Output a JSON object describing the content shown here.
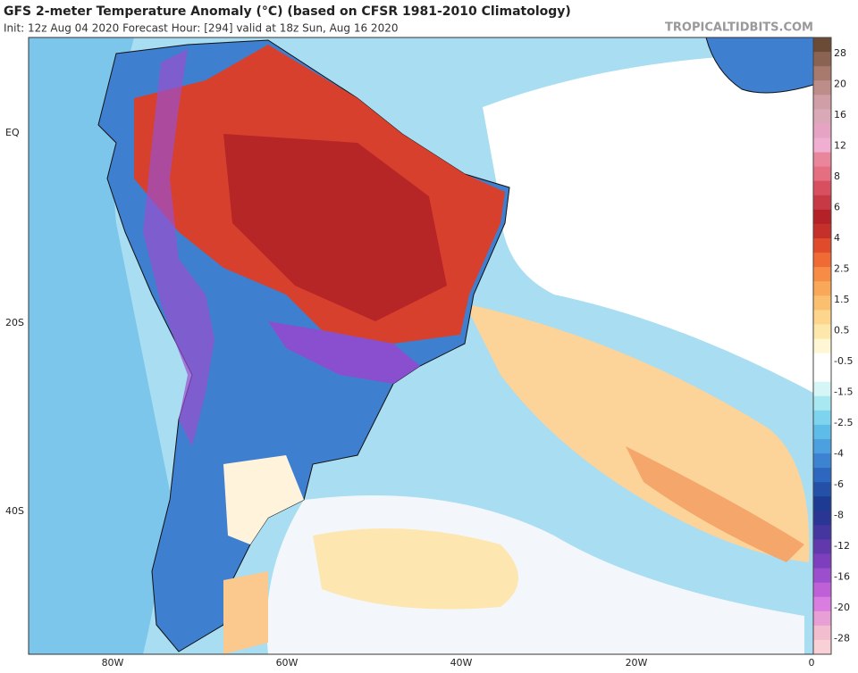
{
  "header": {
    "title": "GFS 2-meter Temperature Anomaly (°C) (based on CFSR 1981-2010 Climatology)",
    "subtitle": "Init: 12z Aug 04 2020   Forecast Hour: [294]   valid at 18z Sun, Aug 16 2020",
    "watermark": "TROPICALTIDBITS.COM"
  },
  "map": {
    "lat_labels": [
      "EQ",
      "20S",
      "40S"
    ],
    "lon_labels": [
      "80W",
      "60W",
      "40W",
      "20W",
      "0"
    ]
  },
  "colorbar": {
    "labels": [
      28,
      20,
      16,
      12,
      8,
      6,
      4,
      2.5,
      1.5,
      0.5,
      -0.5,
      -1.5,
      -2.5,
      -4,
      -6,
      -8,
      -12,
      -16,
      -20,
      -28
    ],
    "colors": [
      "#6b4a36",
      "#8a6352",
      "#a87a6e",
      "#bd8d8a",
      "#cf9ea7",
      "#d9a9b8",
      "#e6a3c4",
      "#f0aed2",
      "#e9869c",
      "#e56e80",
      "#d8505f",
      "#c73a45",
      "#b52128",
      "#c5302b",
      "#e04b2c",
      "#ef6a35",
      "#f68c45",
      "#f9a759",
      "#fbbf70",
      "#fdd58c",
      "#fee7aa",
      "#fff6d3",
      "#ffffff",
      "#ffffff",
      "#d6f5f7",
      "#a9e8f1",
      "#7ed4ee",
      "#5fbbe8",
      "#4da0df",
      "#3c84d1",
      "#2e67bf",
      "#2450a8",
      "#1e3b94",
      "#2b3594",
      "#45359f",
      "#6139ad",
      "#7d3fbd",
      "#9c4fcc",
      "#c060d8",
      "#d97ee0",
      "#e89fd6",
      "#f3bdd0",
      "#f9d0d6"
    ]
  }
}
